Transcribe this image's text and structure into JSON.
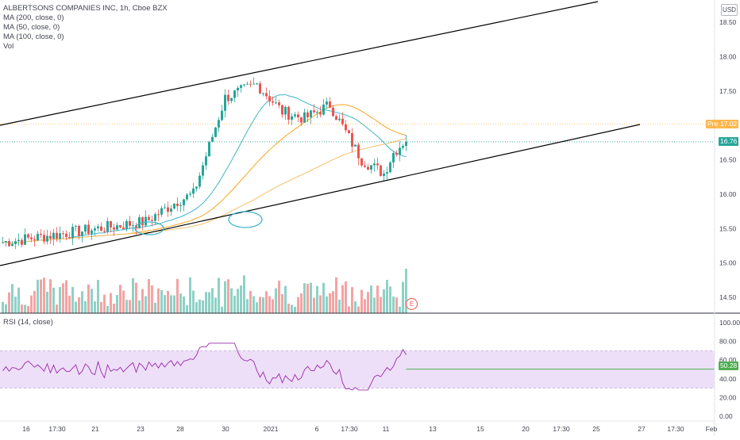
{
  "legend": {
    "symbol": "ALBERTSONS COMPANIES INC, 1h, Cboe BZX",
    "ma200": "MA (200, close, 0)",
    "ma50": "MA (50, close, 0)",
    "ma100": "MA (100, close, 0)",
    "vol": "Vol",
    "rsi": "RSI (14, close)"
  },
  "currency": "USD",
  "earnings_marker": "E",
  "colors": {
    "up": "#26a69a",
    "down": "#ef5350",
    "vol_up": "#8fd1c6",
    "vol_down": "#f5a3a2",
    "ma50": "#3fb6c9",
    "ma100": "#f5a623",
    "ma200": "#f2c06b",
    "rsi_line": "#9c27b0",
    "rsi_band": "#e9d7f5",
    "trendline": "#000000",
    "pre_line": "#ffb74d",
    "rsi_level": "#4caf50"
  },
  "chart_data": [
    {
      "type": "candlestick",
      "title": "ALBERTSONS COMPANIES INC, 1h, Cboe BZX",
      "price_axis": {
        "ticks": [
          "18.50",
          "18.00",
          "17.50",
          "17.00",
          "16.50",
          "16.00",
          "15.50",
          "15.00",
          "14.50"
        ],
        "ylim": [
          14.25,
          18.8
        ]
      },
      "time_axis": {
        "ticks": [
          "16",
          "17:30",
          "21",
          "23",
          "28",
          "30",
          "2021",
          "6",
          "17:30",
          "11",
          "13",
          "15",
          "20",
          "17:30",
          "25",
          "27",
          "17:30",
          "Feb"
        ]
      },
      "current_price": {
        "label": "16.76",
        "value": 16.76
      },
      "premarket": {
        "prefix": "Pre",
        "label": "17.02",
        "value": 17.02
      },
      "series": [
        {
          "name": "MA (50, close, 0)",
          "role": "ma50"
        },
        {
          "name": "MA (100, close, 0)",
          "role": "ma100"
        },
        {
          "name": "MA (200, close, 0)",
          "role": "ma200"
        },
        {
          "name": "Vol",
          "role": "volume"
        }
      ],
      "key_closes": [
        15.3,
        15.5,
        15.6,
        15.9,
        16.0,
        17.4,
        17.6,
        17.2,
        17.1,
        17.3,
        16.5,
        16.3,
        16.6,
        16.8
      ],
      "annotations": [
        "ascending channel",
        "circled touches of lower trendline"
      ]
    },
    {
      "type": "line",
      "title": "RSI (14, close)",
      "axis": {
        "ticks": [
          "100.00",
          "80.00",
          "60.00",
          "40.00",
          "20.00",
          "0.00"
        ],
        "ylim": [
          0,
          100
        ]
      },
      "band": [
        30,
        70
      ],
      "current": {
        "label": "50.28",
        "value": 50.28
      }
    }
  ]
}
